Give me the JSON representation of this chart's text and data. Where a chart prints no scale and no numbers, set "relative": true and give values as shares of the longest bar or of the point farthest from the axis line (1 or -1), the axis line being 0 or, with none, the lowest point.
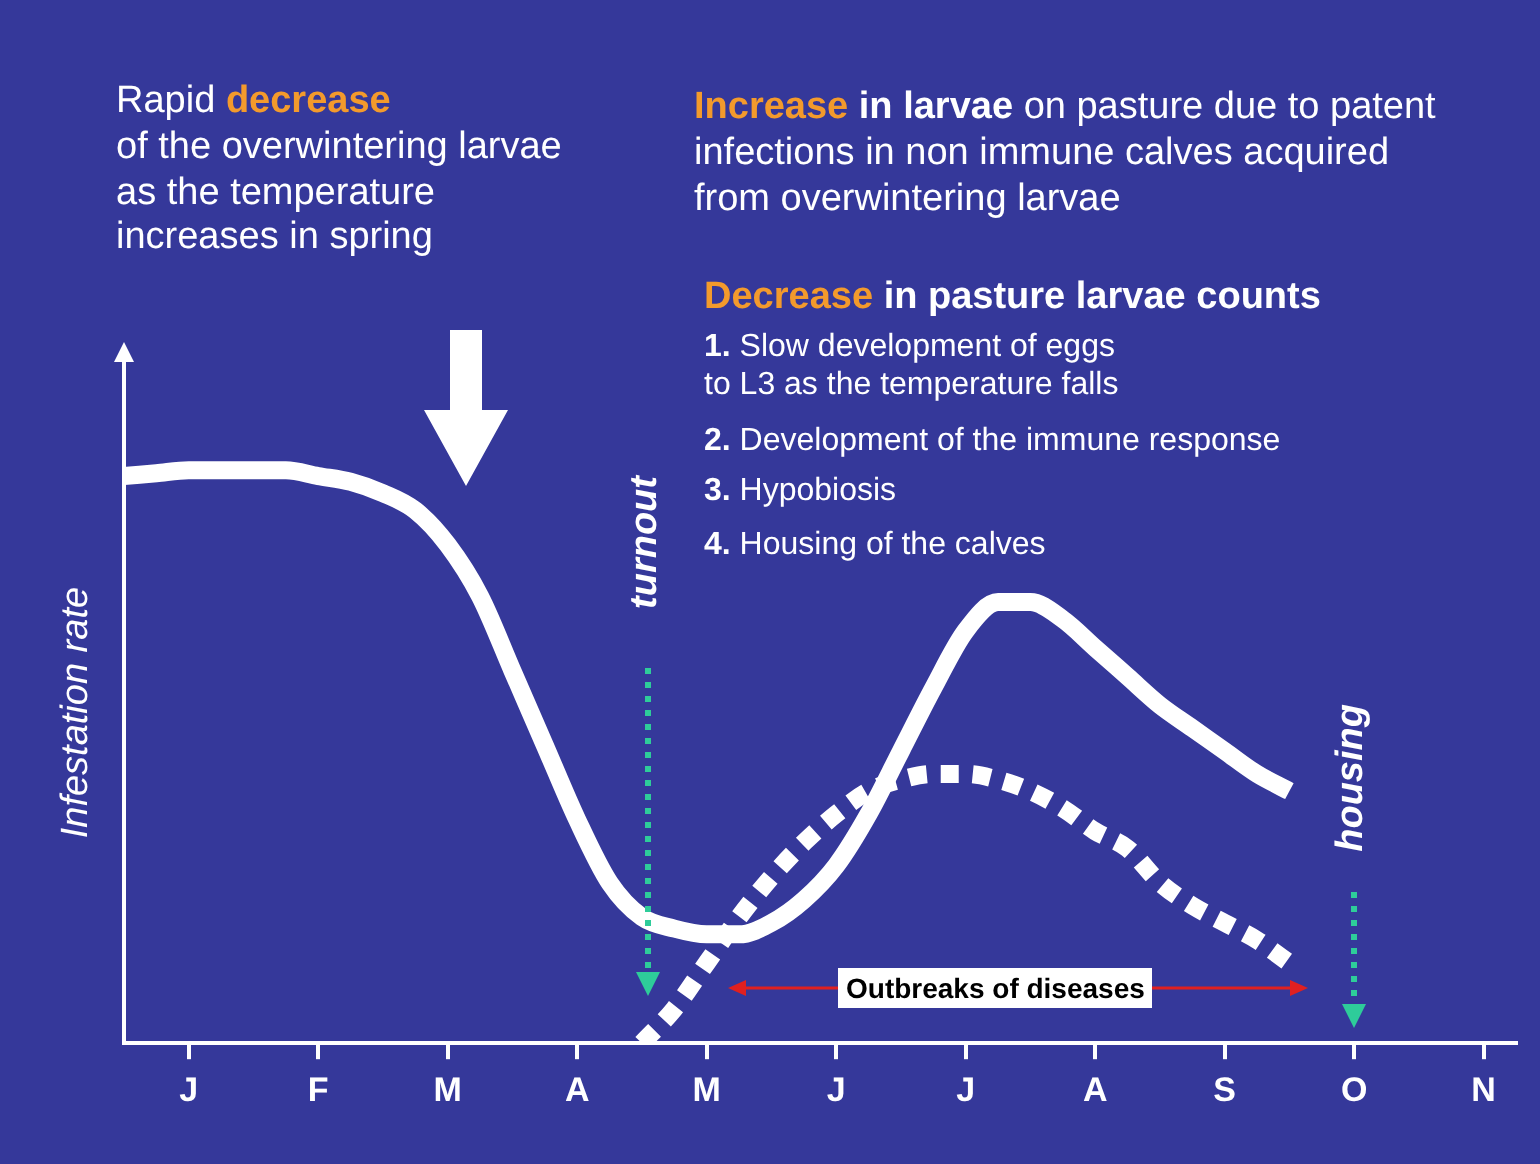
{
  "chart_data": {
    "type": "line",
    "relative": true,
    "ylabel": "Infestation rate",
    "categories": [
      null,
      null,
      "J",
      null,
      null,
      null,
      "F",
      null,
      null,
      null,
      "M",
      null,
      null,
      null,
      "A",
      null,
      null,
      null,
      "M",
      null,
      null,
      null,
      "J",
      null,
      null,
      null,
      "J",
      null,
      null,
      null,
      "A",
      null,
      null,
      null,
      "S",
      null,
      null,
      null,
      "O",
      null,
      null,
      null,
      "N",
      null
    ],
    "series": [
      {
        "color": "#ffffff",
        "line_style": "solid",
        "values": [
          0.99,
          0.995,
          1,
          1,
          1,
          1,
          0.99,
          0.98,
          0.96,
          0.93,
          0.87,
          0.78,
          0.65,
          0.52,
          0.39,
          0.28,
          0.22,
          0.2,
          0.19,
          0.19,
          0.21,
          0.25,
          0.31,
          0.4,
          0.51,
          0.62,
          0.72,
          0.77,
          0.77,
          0.74,
          0.69,
          0.64,
          0.59,
          0.55,
          0.51,
          0.47,
          0.44,
          null,
          null,
          null,
          null,
          null,
          null,
          null
        ]
      },
      {
        "color": "#ffffff",
        "line_style": "dashed",
        "values": [
          null,
          null,
          null,
          null,
          null,
          null,
          null,
          null,
          null,
          null,
          null,
          null,
          null,
          null,
          null,
          null,
          0,
          0.06,
          0.14,
          0.22,
          0.29,
          0.35,
          0.4,
          0.44,
          0.46,
          0.47,
          0.47,
          0.46,
          0.44,
          0.41,
          0.37,
          0.34,
          0.28,
          0.24,
          0.21,
          0.18,
          0.14,
          null,
          null,
          null,
          null,
          null,
          null,
          null
        ]
      }
    ],
    "marker": "none",
    "grid": false,
    "legend": false,
    "annotations": [
      "Rapid decrease\nof the overwintering larvae\nas the temperature\nincreases in spring",
      "Increase in larvae on pasture due to patent\ninfections in non immune calves acquired\nfrom overwintering larvae",
      "Decrease in pasture larvae counts",
      "1. Slow development of eggs\nto L3 as the temperature falls",
      "2. Development of the immune response",
      "3. Hypobiosis",
      "4. Housing of the calves",
      "Outbreaks of diseases",
      "turnout",
      "housing"
    ]
  }
}
